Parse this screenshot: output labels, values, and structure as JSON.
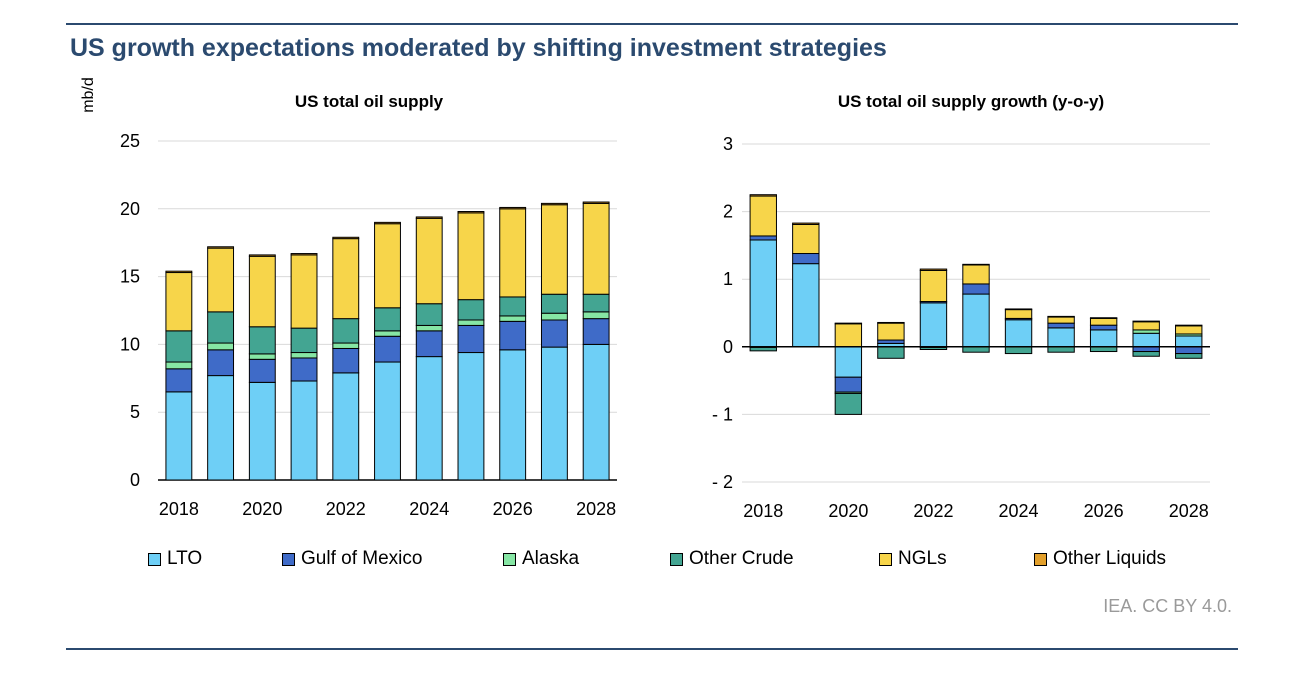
{
  "header": {
    "title": "US growth expectations moderated by shifting investment strategies"
  },
  "footer": {
    "credit": "IEA. CC BY 4.0."
  },
  "colors": {
    "LTO": "#6ecff6",
    "Gulf of Mexico": "#3f6bc8",
    "Alaska": "#86e6a4",
    "Other Crude": "#43a592",
    "NGLs": "#f7d54a",
    "Other Liquids": "#e3a02b"
  },
  "legend": [
    "LTO",
    "Gulf of Mexico",
    "Alaska",
    "Other Crude",
    "NGLs",
    "Other Liquids"
  ],
  "chart_data": [
    {
      "type": "bar",
      "stacked": true,
      "title": "US total oil supply",
      "ylabel": "mb/d",
      "xlabel": "",
      "ylim": [
        0,
        25
      ],
      "yticks": [
        0,
        5,
        10,
        15,
        20,
        25
      ],
      "categories": [
        "2018",
        "2019",
        "2020",
        "2021",
        "2022",
        "2023",
        "2024",
        "2025",
        "2026",
        "2027",
        "2028"
      ],
      "xtick_labels": [
        "2018",
        "2020",
        "2022",
        "2024",
        "2026",
        "2028"
      ],
      "grid": true,
      "series": [
        {
          "name": "LTO",
          "values": [
            6.5,
            7.7,
            7.2,
            7.3,
            7.9,
            8.7,
            9.1,
            9.4,
            9.6,
            9.8,
            10.0
          ]
        },
        {
          "name": "Gulf of Mexico",
          "values": [
            1.7,
            1.9,
            1.7,
            1.7,
            1.8,
            1.9,
            1.9,
            2.0,
            2.1,
            2.0,
            1.9
          ]
        },
        {
          "name": "Alaska",
          "values": [
            0.5,
            0.5,
            0.4,
            0.4,
            0.4,
            0.4,
            0.4,
            0.4,
            0.4,
            0.5,
            0.5
          ]
        },
        {
          "name": "Other Crude",
          "values": [
            2.3,
            2.3,
            2.0,
            1.8,
            1.8,
            1.7,
            1.6,
            1.5,
            1.4,
            1.4,
            1.3
          ]
        },
        {
          "name": "NGLs",
          "values": [
            4.3,
            4.7,
            5.2,
            5.4,
            5.9,
            6.2,
            6.3,
            6.4,
            6.5,
            6.6,
            6.7
          ]
        },
        {
          "name": "Other Liquids",
          "values": [
            0.1,
            0.1,
            0.1,
            0.1,
            0.1,
            0.1,
            0.1,
            0.1,
            0.1,
            0.1,
            0.1
          ]
        }
      ]
    },
    {
      "type": "bar",
      "stacked": true,
      "title": "US total oil supply growth (y-o-y)",
      "ylabel": "",
      "xlabel": "",
      "ylim": [
        -2,
        3
      ],
      "yticks": [
        -2,
        -1,
        0,
        1,
        2,
        3
      ],
      "ytick_labels": [
        "- 2",
        "- 1",
        "0",
        "1",
        "2",
        "3"
      ],
      "categories": [
        "2018",
        "2019",
        "2020",
        "2021",
        "2022",
        "2023",
        "2024",
        "2025",
        "2026",
        "2027",
        "2028"
      ],
      "xtick_labels": [
        "2018",
        "2020",
        "2022",
        "2024",
        "2026",
        "2028"
      ],
      "grid": true,
      "series": [
        {
          "name": "LTO",
          "values": [
            1.58,
            1.23,
            -0.45,
            0.05,
            0.65,
            0.78,
            0.4,
            0.28,
            0.25,
            0.2,
            0.16
          ]
        },
        {
          "name": "Gulf of Mexico",
          "values": [
            0.06,
            0.15,
            -0.22,
            0.05,
            0.02,
            0.15,
            0.02,
            0.07,
            0.07,
            -0.07,
            -0.1
          ]
        },
        {
          "name": "Alaska",
          "values": [
            -0.01,
            0.0,
            -0.02,
            0.0,
            -0.01,
            0.0,
            0.0,
            0.0,
            0.0,
            0.05,
            0.03
          ]
        },
        {
          "name": "Other Crude",
          "values": [
            -0.05,
            0.0,
            -0.31,
            -0.17,
            -0.03,
            -0.08,
            -0.1,
            -0.08,
            -0.07,
            -0.07,
            -0.07
          ]
        },
        {
          "name": "NGLs",
          "values": [
            0.59,
            0.43,
            0.34,
            0.25,
            0.46,
            0.28,
            0.13,
            0.09,
            0.1,
            0.12,
            0.12
          ]
        },
        {
          "name": "Other Liquids",
          "values": [
            0.02,
            0.02,
            0.01,
            0.01,
            0.02,
            0.01,
            0.01,
            0.01,
            0.01,
            0.01,
            0.01
          ]
        }
      ]
    }
  ]
}
